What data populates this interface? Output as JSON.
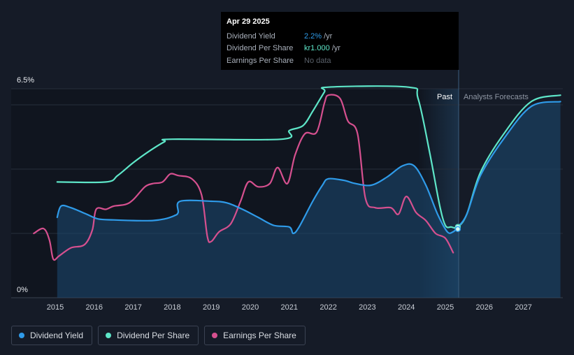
{
  "tooltip": {
    "date": "Apr 29 2025",
    "rows": [
      {
        "name": "Dividend Yield",
        "value": "2.2%",
        "unit": "/yr"
      },
      {
        "name": "Dividend Per Share",
        "value": "kr1.000",
        "unit": "/yr"
      },
      {
        "name": "Earnings Per Share",
        "value": "No data"
      }
    ]
  },
  "labels": {
    "past": "Past",
    "forecast": "Analysts Forecasts"
  },
  "legend": [
    {
      "label": "Dividend Yield",
      "color": "#2f9be9"
    },
    {
      "label": "Dividend Per Share",
      "color": "#5ee6c8"
    },
    {
      "label": "Earnings Per Share",
      "color": "#d6508f"
    }
  ],
  "chart_data": {
    "type": "line",
    "x_ticks": [
      "2015",
      "2016",
      "2017",
      "2018",
      "2019",
      "2020",
      "2021",
      "2022",
      "2023",
      "2024",
      "2025",
      "2026",
      "2027"
    ],
    "y_ticks": [
      "0%",
      "6.5%"
    ],
    "ylim": [
      0,
      6.5
    ],
    "grid": true,
    "colors": {
      "yield": "#2f9be9",
      "dps": "#5ee6c8",
      "eps": "#d6508f"
    },
    "series": [
      {
        "name": "Dividend Yield",
        "values": [
          [
            2015.05,
            2.5
          ],
          [
            2015.15,
            2.85
          ],
          [
            2015.4,
            2.8
          ],
          [
            2015.8,
            2.6
          ],
          [
            2016.1,
            2.45
          ],
          [
            2016.5,
            2.42
          ],
          [
            2017.0,
            2.4
          ],
          [
            2017.5,
            2.4
          ],
          [
            2017.8,
            2.45
          ],
          [
            2018.05,
            2.55
          ],
          [
            2018.15,
            2.65
          ],
          [
            2018.2,
            3.0
          ],
          [
            2019.0,
            3.0
          ],
          [
            2019.4,
            2.95
          ],
          [
            2019.8,
            2.75
          ],
          [
            2020.2,
            2.5
          ],
          [
            2020.6,
            2.25
          ],
          [
            2021.0,
            2.2
          ],
          [
            2021.1,
            2.0
          ],
          [
            2021.25,
            2.2
          ],
          [
            2021.6,
            3.0
          ],
          [
            2021.85,
            3.5
          ],
          [
            2022.0,
            3.7
          ],
          [
            2022.4,
            3.65
          ],
          [
            2022.7,
            3.55
          ],
          [
            2023.1,
            3.5
          ],
          [
            2023.5,
            3.75
          ],
          [
            2023.9,
            4.1
          ],
          [
            2024.2,
            4.1
          ],
          [
            2024.5,
            3.5
          ],
          [
            2024.8,
            2.6
          ],
          [
            2025.05,
            2.05
          ],
          [
            2025.2,
            2.05
          ],
          [
            2025.32,
            2.2
          ],
          [
            2025.55,
            2.6
          ],
          [
            2025.9,
            3.8
          ],
          [
            2026.5,
            4.95
          ],
          [
            2027.2,
            5.95
          ],
          [
            2027.95,
            6.1
          ]
        ]
      },
      {
        "name": "Dividend Per Share",
        "values": [
          [
            2015.05,
            3.6
          ],
          [
            2016.3,
            3.6
          ],
          [
            2016.6,
            3.8
          ],
          [
            2017.0,
            4.2
          ],
          [
            2017.4,
            4.55
          ],
          [
            2017.8,
            4.85
          ],
          [
            2018.0,
            4.93
          ],
          [
            2020.8,
            4.93
          ],
          [
            2021.0,
            5.2
          ],
          [
            2021.35,
            5.35
          ],
          [
            2021.6,
            5.8
          ],
          [
            2021.9,
            6.4
          ],
          [
            2022.0,
            6.55
          ],
          [
            2024.05,
            6.55
          ],
          [
            2024.3,
            6.2
          ],
          [
            2024.6,
            4.5
          ],
          [
            2024.85,
            2.9
          ],
          [
            2025.0,
            2.25
          ],
          [
            2025.15,
            2.2
          ],
          [
            2025.32,
            2.2
          ],
          [
            2025.55,
            2.6
          ],
          [
            2025.9,
            3.9
          ],
          [
            2026.5,
            5.1
          ],
          [
            2027.2,
            6.1
          ],
          [
            2027.95,
            6.3
          ]
        ]
      },
      {
        "name": "Earnings Per Share",
        "values": [
          [
            2014.45,
            2.0
          ],
          [
            2014.7,
            2.15
          ],
          [
            2014.85,
            1.8
          ],
          [
            2014.95,
            1.2
          ],
          [
            2015.1,
            1.3
          ],
          [
            2015.4,
            1.55
          ],
          [
            2015.75,
            1.65
          ],
          [
            2015.95,
            2.1
          ],
          [
            2016.05,
            2.75
          ],
          [
            2016.3,
            2.75
          ],
          [
            2016.5,
            2.85
          ],
          [
            2016.8,
            2.9
          ],
          [
            2017.0,
            3.05
          ],
          [
            2017.3,
            3.45
          ],
          [
            2017.5,
            3.55
          ],
          [
            2017.75,
            3.6
          ],
          [
            2017.95,
            3.85
          ],
          [
            2018.15,
            3.8
          ],
          [
            2018.5,
            3.7
          ],
          [
            2018.75,
            3.2
          ],
          [
            2018.9,
            1.9
          ],
          [
            2019.0,
            1.75
          ],
          [
            2019.2,
            2.05
          ],
          [
            2019.5,
            2.3
          ],
          [
            2019.75,
            3.0
          ],
          [
            2019.95,
            3.6
          ],
          [
            2020.2,
            3.45
          ],
          [
            2020.5,
            3.55
          ],
          [
            2020.7,
            4.05
          ],
          [
            2020.95,
            3.55
          ],
          [
            2021.15,
            4.45
          ],
          [
            2021.4,
            5.1
          ],
          [
            2021.7,
            5.15
          ],
          [
            2021.9,
            6.05
          ],
          [
            2022.0,
            6.3
          ],
          [
            2022.3,
            6.2
          ],
          [
            2022.5,
            5.5
          ],
          [
            2022.75,
            5.1
          ],
          [
            2022.95,
            3.1
          ],
          [
            2023.2,
            2.8
          ],
          [
            2023.6,
            2.8
          ],
          [
            2023.8,
            2.6
          ],
          [
            2024.0,
            3.15
          ],
          [
            2024.25,
            2.65
          ],
          [
            2024.5,
            2.4
          ],
          [
            2024.75,
            2.0
          ],
          [
            2025.0,
            1.85
          ],
          [
            2025.2,
            1.4
          ]
        ]
      }
    ]
  }
}
